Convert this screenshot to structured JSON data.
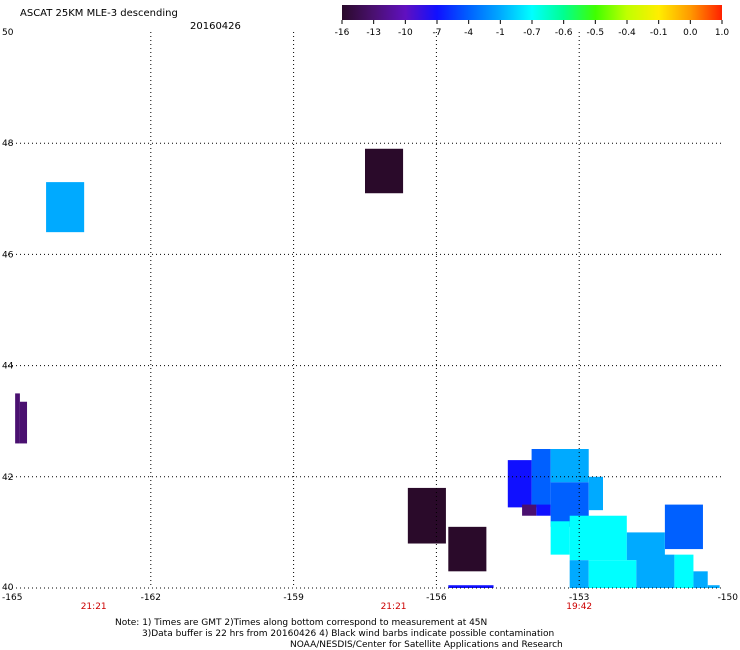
{
  "chart_data": {
    "type": "heatmap",
    "title": "ASCAT 25KM MLE-3 descending",
    "date": "20160426",
    "xlim": [
      -165,
      -150
    ],
    "ylim": [
      40,
      50
    ],
    "x_ticks": [
      "-165",
      "-162",
      "-159",
      "-156",
      "-153",
      "-150"
    ],
    "y_ticks": [
      "50",
      "48",
      "46",
      "44",
      "42",
      "40"
    ],
    "grid": "dotted",
    "colorbar": {
      "labels": [
        "-16",
        "-13",
        "-10",
        "-7",
        "-4",
        "-1",
        "-0.7",
        "-0.6",
        "-0.5",
        "-0.4",
        "-0.1",
        "0.0",
        "1.0"
      ],
      "colors": [
        "#2a0a2a",
        "#4a1070",
        "#6010c0",
        "#1010ff",
        "#0060ff",
        "#00aaff",
        "#00ffff",
        "#00ff90",
        "#40ff00",
        "#c0ff00",
        "#ffee00",
        "#ff9900",
        "#ff2000"
      ]
    },
    "time_labels": [
      {
        "lon": -163.2,
        "text": "21:21"
      },
      {
        "lon": -156.9,
        "text": "21:21"
      },
      {
        "lon": -153,
        "text": "19:42"
      }
    ],
    "cells": [
      {
        "lon": [
          -164.2,
          -163.4
        ],
        "lat": [
          46.4,
          47.3
        ],
        "value": -1
      },
      {
        "lon": [
          -157.5,
          -156.7
        ],
        "lat": [
          47.1,
          47.9
        ],
        "value": -16
      },
      {
        "lon": [
          -164.85,
          -164.75
        ],
        "lat": [
          42.6,
          43.5
        ],
        "value": -13
      },
      {
        "lon": [
          -164.75,
          -164.6
        ],
        "lat": [
          42.6,
          43.35
        ],
        "value": -13
      },
      {
        "lon": [
          -156.6,
          -155.8
        ],
        "lat": [
          40.8,
          41.8
        ],
        "value": -16
      },
      {
        "lon": [
          -155.75,
          -154.95
        ],
        "lat": [
          40.3,
          41.1
        ],
        "value": -16
      },
      {
        "lon": [
          -155.75,
          -154.8
        ],
        "lat": [
          40.0,
          40.05
        ],
        "value": -7
      },
      {
        "lon": [
          -154.5,
          -154.0
        ],
        "lat": [
          41.45,
          42.3
        ],
        "value": -7
      },
      {
        "lon": [
          -154.0,
          -153.6
        ],
        "lat": [
          41.45,
          42.5
        ],
        "value": -4
      },
      {
        "lon": [
          -153.6,
          -152.8
        ],
        "lat": [
          41.9,
          42.5
        ],
        "value": -1
      },
      {
        "lon": [
          -154.2,
          -153.9
        ],
        "lat": [
          41.3,
          41.5
        ],
        "value": -13
      },
      {
        "lon": [
          -153.9,
          -153.6
        ],
        "lat": [
          41.3,
          41.5
        ],
        "value": -7
      },
      {
        "lon": [
          -153.6,
          -152.8
        ],
        "lat": [
          41.1,
          41.9
        ],
        "value": -4
      },
      {
        "lon": [
          -152.8,
          -152.5
        ],
        "lat": [
          41.4,
          42.0
        ],
        "value": -1
      },
      {
        "lon": [
          -153.6,
          -153.2
        ],
        "lat": [
          40.6,
          41.2
        ],
        "value": -0.7
      },
      {
        "lon": [
          -153.2,
          -152.0
        ],
        "lat": [
          40.5,
          41.3
        ],
        "value": -0.7
      },
      {
        "lon": [
          -151.2,
          -150.4
        ],
        "lat": [
          40.7,
          41.5
        ],
        "value": -4
      },
      {
        "lon": [
          -152.0,
          -151.2
        ],
        "lat": [
          40.5,
          41.0
        ],
        "value": -1
      },
      {
        "lon": [
          -153.2,
          -152.8
        ],
        "lat": [
          40.0,
          40.5
        ],
        "value": -1
      },
      {
        "lon": [
          -152.8,
          -151.8
        ],
        "lat": [
          40.0,
          40.5
        ],
        "value": -0.7
      },
      {
        "lon": [
          -151.8,
          -151.0
        ],
        "lat": [
          40.0,
          40.6
        ],
        "value": -1
      },
      {
        "lon": [
          -151.0,
          -150.6
        ],
        "lat": [
          40.0,
          40.6
        ],
        "value": -0.7
      },
      {
        "lon": [
          -150.6,
          -150.3
        ],
        "lat": [
          40.0,
          40.3
        ],
        "value": -1
      },
      {
        "lon": [
          -150.3,
          -150.05
        ],
        "lat": [
          40.0,
          40.05
        ],
        "value": -1
      }
    ]
  },
  "notes": {
    "line1": "Note: 1) Times are GMT 2)Times along bottom correspond to measurement at 45N",
    "line2": "3)Data buffer is 22 hrs from 20160426 4) Black wind barbs indicate possible contamination",
    "line3": "NOAA/NESDIS/Center for Satellite Applications and Research"
  }
}
